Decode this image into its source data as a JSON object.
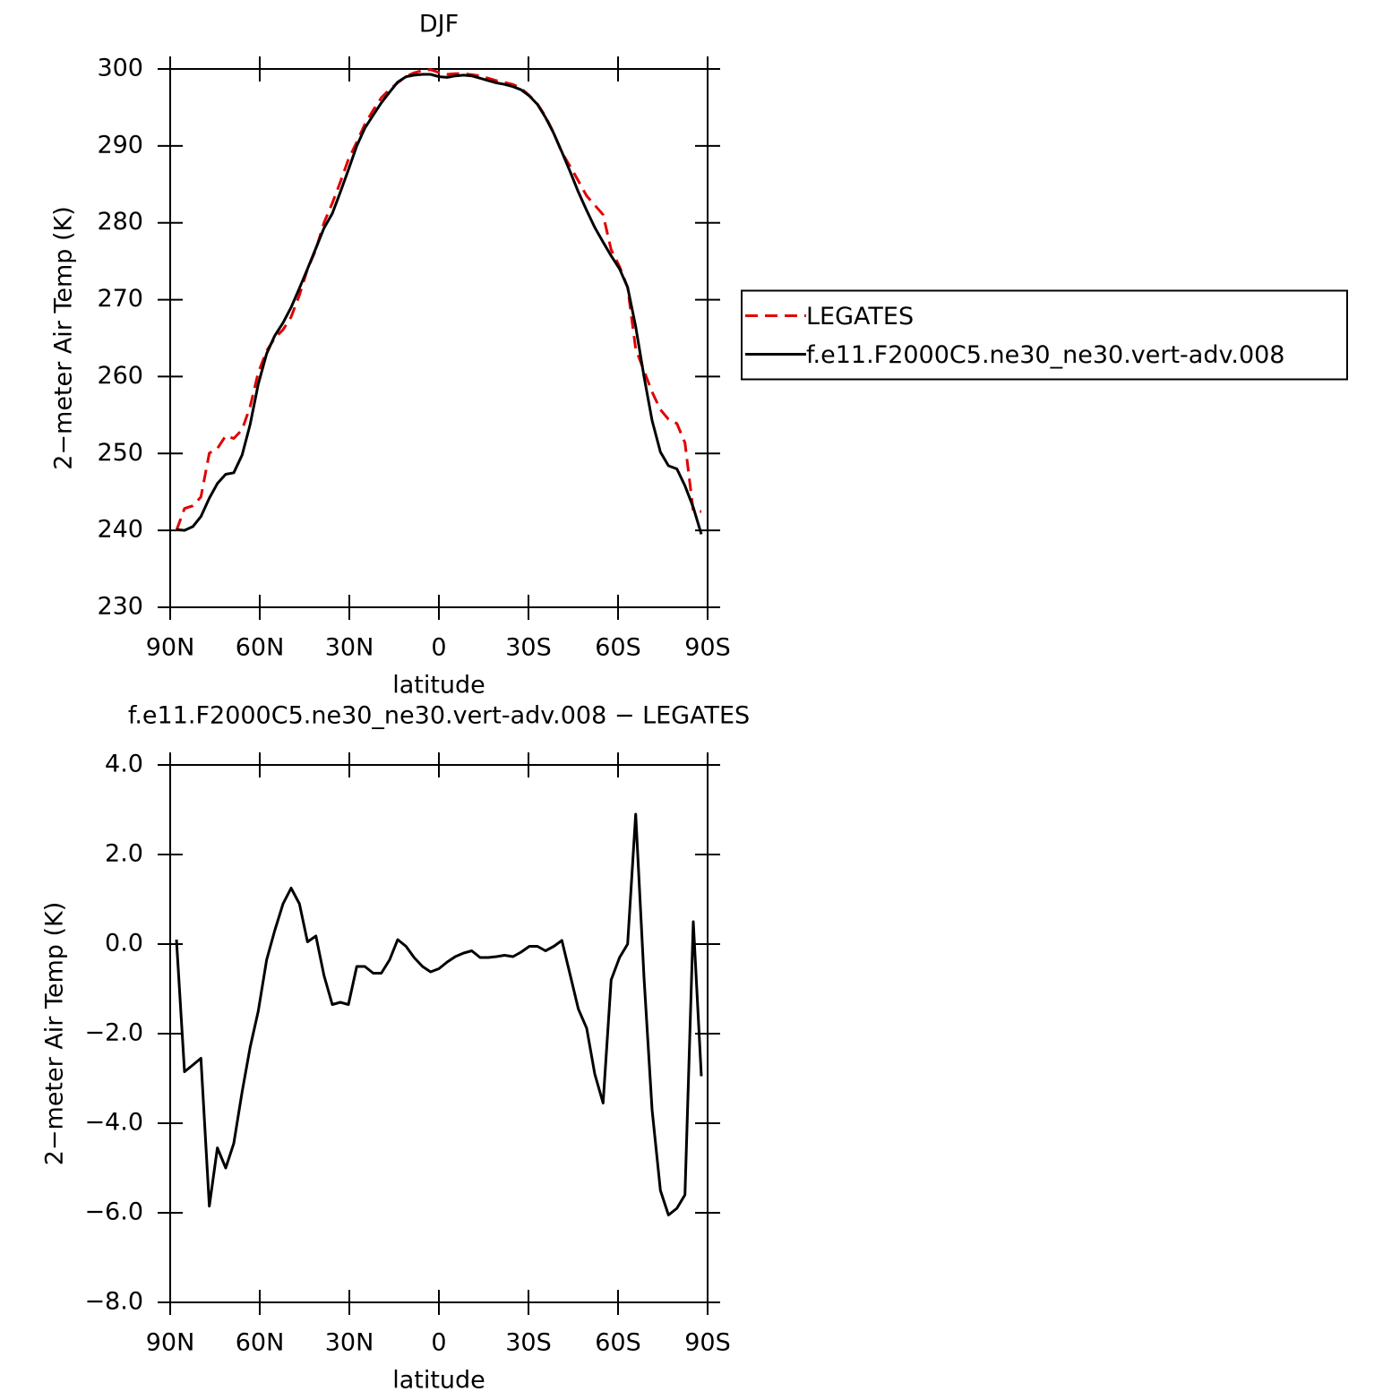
{
  "chart_data": [
    {
      "type": "line",
      "title": "DJF",
      "xlabel": "latitude",
      "ylabel": "2−meter Air Temp (K)",
      "x": [
        87.9,
        85.2,
        82.4,
        79.7,
        76.9,
        74.2,
        71.4,
        68.7,
        65.9,
        63.2,
        60.5,
        57.7,
        55.0,
        52.2,
        49.5,
        46.7,
        44.0,
        41.2,
        38.5,
        35.7,
        33.0,
        30.3,
        27.5,
        24.8,
        22.0,
        19.3,
        16.5,
        13.8,
        11.0,
        8.3,
        5.5,
        2.8,
        0.0,
        -2.8,
        -5.5,
        -8.3,
        -11.0,
        -13.8,
        -16.5,
        -19.3,
        -22.0,
        -24.8,
        -27.5,
        -30.3,
        -33.0,
        -35.7,
        -38.5,
        -41.2,
        -44.0,
        -46.7,
        -49.5,
        -52.2,
        -55.0,
        -57.7,
        -60.5,
        -63.2,
        -65.9,
        -68.7,
        -71.4,
        -74.2,
        -76.9,
        -79.7,
        -82.4,
        -85.2,
        -87.9
      ],
      "series": [
        {
          "name": "LEGATES",
          "color": "#e00000",
          "linestyle": "dashed",
          "values": [
            240.0,
            242.85,
            243.2,
            244.35,
            250.05,
            250.65,
            252.3,
            251.95,
            253.1,
            256.1,
            260.5,
            263.35,
            265.0,
            266.1,
            267.75,
            270.6,
            273.95,
            276.52,
            280.0,
            282.55,
            285.3,
            288.25,
            290.5,
            292.8,
            294.65,
            296.25,
            297.35,
            298.2,
            299.05,
            299.5,
            299.8,
            299.92,
            299.55,
            299.3,
            299.38,
            299.4,
            299.25,
            299.1,
            298.8,
            298.48,
            298.25,
            297.98,
            297.48,
            296.55,
            295.45,
            293.85,
            291.65,
            289.12,
            287.3,
            285.45,
            283.48,
            282.3,
            281.05,
            276.5,
            274.3,
            271.6,
            263.6,
            260.75,
            258.0,
            255.7,
            254.45,
            253.9,
            251.4,
            242.5,
            242.45
          ]
        },
        {
          "name": "f.e11.F2000C5.ne30_ne30.vert-adv.008",
          "color": "#000000",
          "linestyle": "solid",
          "values": [
            240.1,
            240.0,
            240.5,
            241.8,
            244.2,
            246.1,
            247.3,
            247.5,
            249.8,
            253.8,
            259.0,
            263.0,
            265.3,
            267.0,
            269.0,
            271.5,
            274.0,
            276.7,
            279.3,
            281.2,
            284.0,
            286.9,
            290.0,
            292.3,
            294.0,
            295.6,
            297.0,
            298.3,
            299.0,
            299.2,
            299.3,
            299.3,
            299.0,
            298.9,
            299.1,
            299.2,
            299.1,
            298.8,
            298.5,
            298.2,
            298.0,
            297.7,
            297.3,
            296.5,
            295.4,
            293.7,
            291.6,
            289.2,
            286.6,
            284.0,
            281.6,
            279.4,
            277.5,
            275.7,
            274.0,
            271.6,
            266.5,
            260.0,
            254.3,
            250.2,
            248.4,
            248.0,
            245.8,
            243.0,
            239.5
          ]
        }
      ],
      "xlim": [
        90,
        -90
      ],
      "xticks": [
        {
          "value": 90,
          "label": "90N"
        },
        {
          "value": 60,
          "label": "60N"
        },
        {
          "value": 30,
          "label": "30N"
        },
        0,
        {
          "value": -30,
          "label": "30S"
        },
        {
          "value": -60,
          "label": "60S"
        },
        {
          "value": -90,
          "label": "90S"
        }
      ],
      "ylim": [
        230,
        300
      ],
      "yticks": [
        230,
        240,
        250,
        260,
        270,
        280,
        290,
        300
      ],
      "legend": "right"
    },
    {
      "type": "line",
      "title": "f.e11.F2000C5.ne30_ne30.vert-adv.008 − LEGATES",
      "xlabel": "latitude",
      "ylabel": "2−meter Air Temp (K)",
      "x": [
        87.9,
        85.2,
        82.4,
        79.7,
        76.9,
        74.2,
        71.4,
        68.7,
        65.9,
        63.2,
        60.5,
        57.7,
        55.0,
        52.2,
        49.5,
        46.7,
        44.0,
        41.2,
        38.5,
        35.7,
        33.0,
        30.3,
        27.5,
        24.8,
        22.0,
        19.3,
        16.5,
        13.8,
        11.0,
        8.3,
        5.5,
        2.8,
        0.0,
        -2.8,
        -5.5,
        -8.3,
        -11.0,
        -13.8,
        -16.5,
        -19.3,
        -22.0,
        -24.8,
        -27.5,
        -30.3,
        -33.0,
        -35.7,
        -38.5,
        -41.2,
        -44.0,
        -46.7,
        -49.5,
        -52.2,
        -55.0,
        -57.7,
        -60.5,
        -63.2,
        -65.9,
        -68.7,
        -71.4,
        -74.2,
        -76.9,
        -79.7,
        -82.4,
        -85.2,
        -87.9
      ],
      "color": "#000000",
      "values": [
        0.1,
        -2.85,
        -2.7,
        -2.55,
        -5.85,
        -4.55,
        -5.0,
        -4.45,
        -3.3,
        -2.3,
        -1.5,
        -0.35,
        0.3,
        0.9,
        1.25,
        0.9,
        0.05,
        0.18,
        -0.7,
        -1.35,
        -1.3,
        -1.35,
        -0.5,
        -0.5,
        -0.65,
        -0.65,
        -0.35,
        0.1,
        -0.05,
        -0.3,
        -0.5,
        -0.62,
        -0.55,
        -0.4,
        -0.28,
        -0.2,
        -0.15,
        -0.3,
        -0.3,
        -0.28,
        -0.25,
        -0.28,
        -0.18,
        -0.05,
        -0.05,
        -0.15,
        -0.05,
        0.08,
        -0.7,
        -1.45,
        -1.88,
        -2.9,
        -3.55,
        -0.8,
        -0.3,
        0.0,
        2.9,
        -0.75,
        -3.7,
        -5.5,
        -6.05,
        -5.9,
        -5.6,
        0.5,
        -2.95
      ],
      "xlim": [
        90,
        -90
      ],
      "xticks": [
        {
          "value": 90,
          "label": "90N"
        },
        {
          "value": 60,
          "label": "60N"
        },
        {
          "value": 30,
          "label": "30N"
        },
        0,
        {
          "value": -30,
          "label": "30S"
        },
        {
          "value": -60,
          "label": "60S"
        },
        {
          "value": -90,
          "label": "90S"
        }
      ],
      "ylim": [
        -8,
        4
      ],
      "yticks": [
        {
          "value": -8,
          "label": "−8.0"
        },
        {
          "value": -6,
          "label": "−6.0"
        },
        {
          "value": -4,
          "label": "−4.0"
        },
        {
          "value": -2,
          "label": "−2.0"
        },
        {
          "value": 0,
          "label": "0.0"
        },
        {
          "value": 2,
          "label": "2.0"
        },
        {
          "value": 4,
          "label": "4.0"
        }
      ]
    }
  ]
}
